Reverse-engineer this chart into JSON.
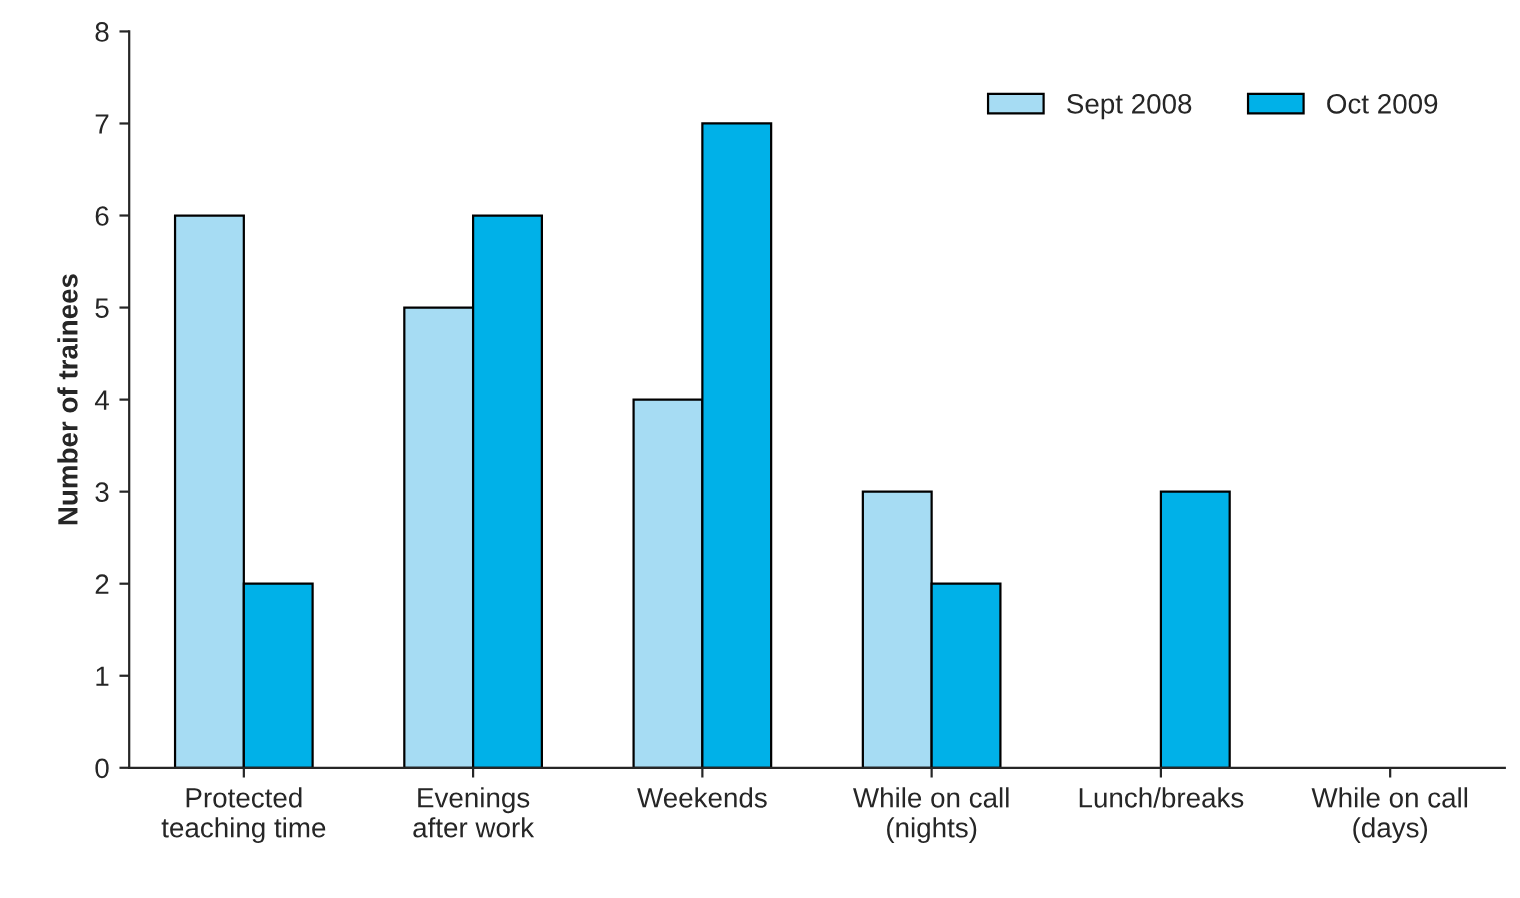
{
  "chart_data": {
    "type": "bar",
    "ylabel": "Number of trainees",
    "categories": [
      "Protected\nteaching time",
      "Evenings\nafter work",
      "Weekends",
      "While on call\n(nights)",
      "Lunch/breaks",
      "While on call\n(days)"
    ],
    "series": [
      {
        "name": "Sept 2008",
        "color": "#a6dcf3",
        "values": [
          6,
          5,
          4,
          3,
          0,
          0
        ]
      },
      {
        "name": "Oct 2009",
        "color": "#00b1e8",
        "values": [
          2,
          6,
          7,
          2,
          3,
          0
        ]
      }
    ],
    "ylim": [
      0,
      8
    ],
    "yticks": [
      0,
      1,
      2,
      3,
      4,
      5,
      6,
      7,
      8
    ],
    "grid": false,
    "legend": "top right"
  }
}
